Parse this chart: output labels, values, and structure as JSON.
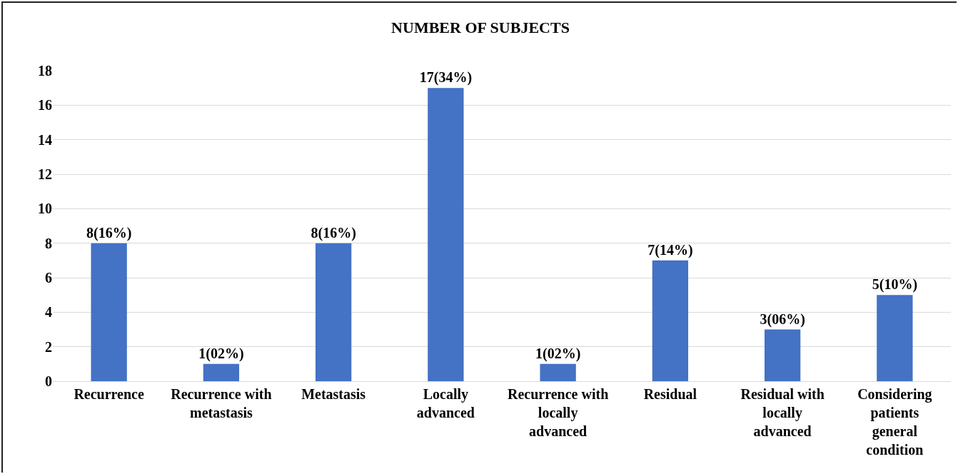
{
  "chart_data": {
    "type": "bar",
    "title": "NUMBER OF SUBJECTS",
    "categories": [
      "Recurrence",
      "Recurrence with metastasis",
      "Metastasis",
      "Locally advanced",
      "Recurrence with locally advanced",
      "Residual",
      "Residual with locally advanced",
      "Considering patients general condition"
    ],
    "values": [
      8,
      1,
      8,
      17,
      1,
      7,
      3,
      5
    ],
    "value_labels": [
      "8(16%)",
      "1(02%)",
      "8(16%)",
      "17(34%)",
      "1(02%)",
      "7(14%)",
      "3(06%)",
      "5(10%)"
    ],
    "color": "#4472c4",
    "ylim": [
      0,
      18
    ],
    "yticks": [
      0,
      2,
      4,
      6,
      8,
      10,
      12,
      14,
      16,
      18
    ],
    "grid": "y"
  }
}
